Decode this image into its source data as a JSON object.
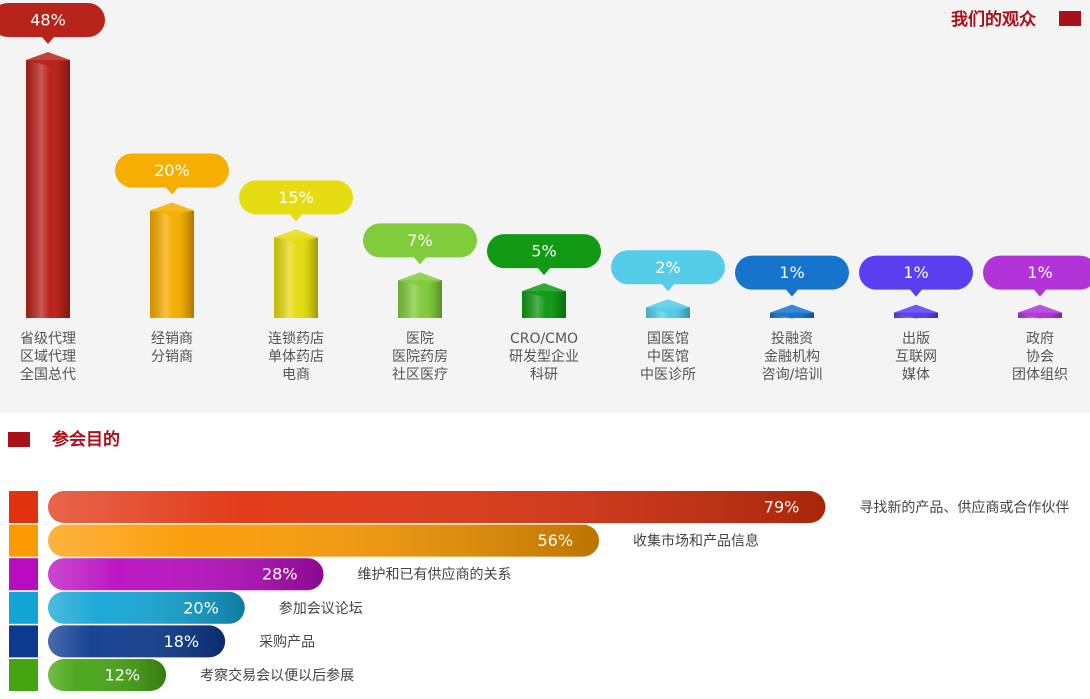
{
  "chart_data": [
    {
      "type": "bar",
      "title": "我们的观众",
      "categories": [
        [
          "省级代理",
          "区域代理",
          "全国总代"
        ],
        [
          "经销商",
          "分销商"
        ],
        [
          "连锁药店",
          "单体药店",
          "电商"
        ],
        [
          "医院",
          "医院药房",
          "社区医疗"
        ],
        [
          "CRO/CMO",
          "研发型企业",
          "科研"
        ],
        [
          "国医馆",
          "中医馆",
          "中医诊所"
        ],
        [
          "投融资",
          "金融机构",
          "咨询/培训"
        ],
        [
          "出版",
          "互联网",
          "媒体"
        ],
        [
          "政府",
          "协会",
          "团体组织"
        ]
      ],
      "values": [
        48,
        20,
        15,
        7,
        5,
        2,
        1,
        1,
        1
      ],
      "value_labels": [
        "48%",
        "20%",
        "15%",
        "7%",
        "5%",
        "2%",
        "1%",
        "1%",
        "1%"
      ],
      "colors": [
        "#b8231a",
        "#f6ae00",
        "#e6dc12",
        "#80cc3c",
        "#129a14",
        "#55cce8",
        "#1774cc",
        "#5b3ef0",
        "#b234d8"
      ]
    },
    {
      "type": "hbar",
      "title": "参会目的",
      "categories": [
        "寻找新的产品、供应商或合作伙伴",
        "收集市场和产品信息",
        "维护和已有供应商的关系",
        "参加会议论坛",
        "采购产品",
        "考察交易会以便以后参展"
      ],
      "values": [
        79,
        56,
        28,
        20,
        18,
        12
      ],
      "value_labels": [
        "79%",
        "56%",
        "28%",
        "20%",
        "18%",
        "12%"
      ],
      "colors": [
        "#e0320e",
        "#fb9a00",
        "#b80cc0",
        "#12a4d4",
        "#0b3a8e",
        "#44a412"
      ]
    }
  ]
}
